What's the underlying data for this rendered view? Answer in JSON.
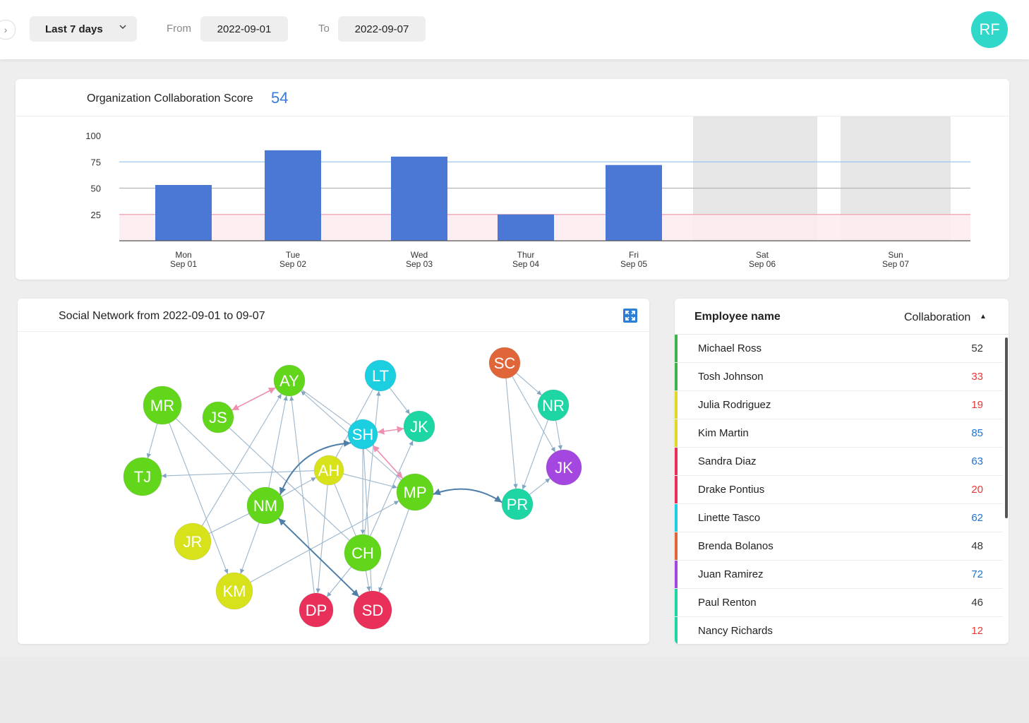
{
  "header": {
    "date_range": "Last 7 days",
    "from_label": "From",
    "from_date": "2022-09-01",
    "to_label": "To",
    "to_date": "2022-09-07",
    "user_initials": "RF",
    "collapse_icon": "chevron-right-icon"
  },
  "score_card": {
    "title": "Organization Collaboration Score",
    "score": "54"
  },
  "chart_data": {
    "type": "bar",
    "categories": [
      {
        "day": "Mon",
        "date": "Sep 01"
      },
      {
        "day": "Tue",
        "date": "Sep 02"
      },
      {
        "day": "Wed",
        "date": "Sep 03"
      },
      {
        "day": "Thur",
        "date": "Sep 04"
      },
      {
        "day": "Fri",
        "date": "Sep 05"
      },
      {
        "day": "Sat",
        "date": "Sep 06"
      },
      {
        "day": "Sun",
        "date": "Sep 07"
      }
    ],
    "values": [
      53,
      86,
      80,
      25,
      72,
      null,
      null
    ],
    "shaded_days": [
      "Sat",
      "Sun"
    ],
    "ylim": [
      0,
      100
    ],
    "yticks": [
      25,
      50,
      75,
      100
    ],
    "reference_lines": [
      75,
      50,
      25
    ],
    "low_band_max": 25,
    "colors": {
      "bar": "#4a78d4",
      "line_75": "#9cc6f0",
      "line_50": "#b5b5b5",
      "line_25": "#f0a0ae",
      "band_25": "#fdecee",
      "shade": "#e6e6e6"
    }
  },
  "network": {
    "title": "Social Network from 2022-09-01 to 09-07",
    "expand_icon": "expand-icon",
    "nodes": [
      {
        "id": "MR",
        "color": "#62d61a"
      },
      {
        "id": "JS",
        "color": "#62d61a"
      },
      {
        "id": "AY",
        "color": "#62d61a"
      },
      {
        "id": "LT",
        "color": "#1ccfe0"
      },
      {
        "id": "SH",
        "color": "#1ccfe0"
      },
      {
        "id": "JK",
        "color": "#1dd6a3"
      },
      {
        "id": "TJ",
        "color": "#62d61a"
      },
      {
        "id": "AH",
        "color": "#d7e21b"
      },
      {
        "id": "NM",
        "color": "#62d61a"
      },
      {
        "id": "MP",
        "color": "#62d61a"
      },
      {
        "id": "JR",
        "color": "#d7e21b"
      },
      {
        "id": "CH",
        "color": "#62d61a"
      },
      {
        "id": "KM",
        "color": "#d7e21b"
      },
      {
        "id": "DP",
        "color": "#e8305a"
      },
      {
        "id": "SD",
        "color": "#e8305a"
      },
      {
        "id": "SC",
        "color": "#e0663a"
      },
      {
        "id": "NR",
        "color": "#1dd6a3"
      },
      {
        "id": "JK2",
        "label": "JK",
        "color": "#a447e0"
      },
      {
        "id": "PR",
        "color": "#1dd6a3"
      }
    ]
  },
  "table": {
    "col_name": "Employee name",
    "col_collab": "Collaboration",
    "sort_icon": "sort-ascending-icon",
    "rows": [
      {
        "name": "Michael Ross",
        "value": "52",
        "value_color": "#333333",
        "bar_color": "#3cb44b"
      },
      {
        "name": "Tosh Johnson",
        "value": "33",
        "value_color": "#e53935",
        "bar_color": "#3cb44b"
      },
      {
        "name": "Julia Rodriguez",
        "value": "19",
        "value_color": "#e53935",
        "bar_color": "#e2d82a"
      },
      {
        "name": "Kim Martin",
        "value": "85",
        "value_color": "#1e73cf",
        "bar_color": "#e2d82a"
      },
      {
        "name": "Sandra Diaz",
        "value": "63",
        "value_color": "#1e73cf",
        "bar_color": "#e8305a"
      },
      {
        "name": "Drake Pontius",
        "value": "20",
        "value_color": "#e53935",
        "bar_color": "#e8305a"
      },
      {
        "name": "Linette Tasco",
        "value": "62",
        "value_color": "#1e73cf",
        "bar_color": "#1ccfe0"
      },
      {
        "name": "Brenda Bolanos",
        "value": "48",
        "value_color": "#333333",
        "bar_color": "#e0663a"
      },
      {
        "name": "Juan Ramirez",
        "value": "72",
        "value_color": "#1e73cf",
        "bar_color": "#a447e0"
      },
      {
        "name": "Paul Renton",
        "value": "46",
        "value_color": "#333333",
        "bar_color": "#1dd6a3"
      },
      {
        "name": "Nancy Richards",
        "value": "12",
        "value_color": "#e53935",
        "bar_color": "#1dd6a3"
      }
    ]
  }
}
